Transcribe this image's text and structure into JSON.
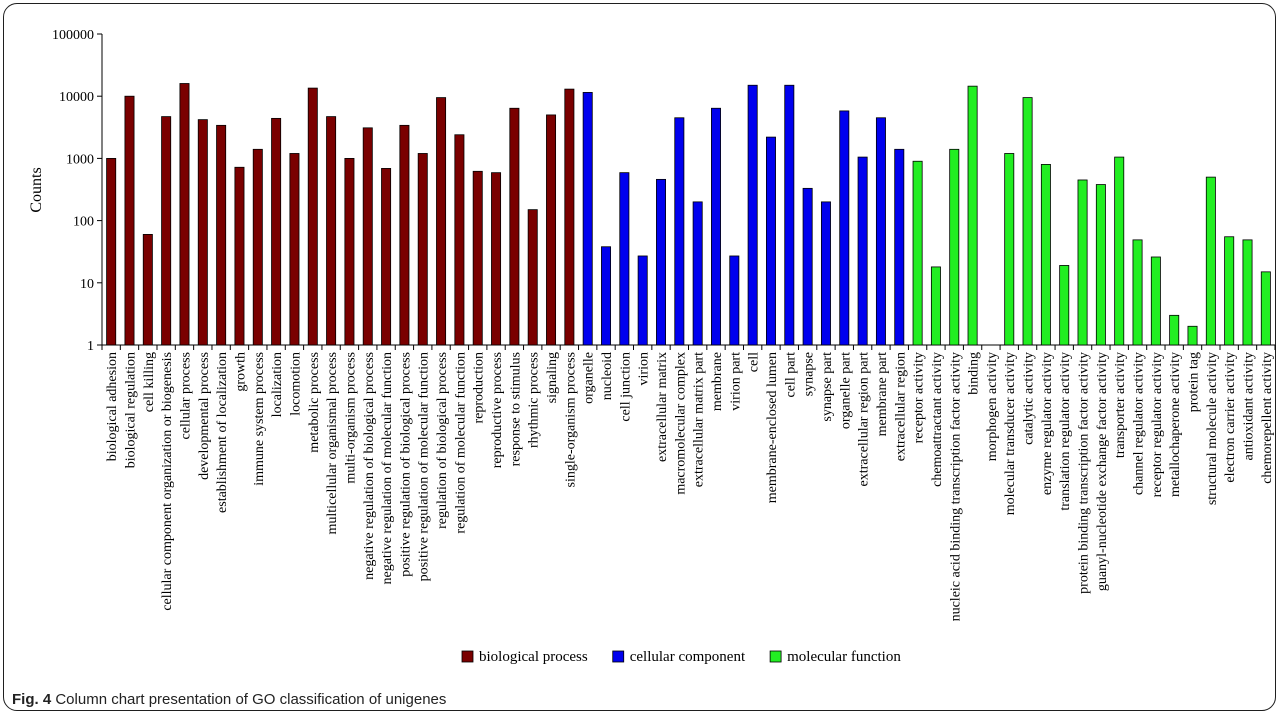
{
  "caption": {
    "label": "Fig. 4",
    "text": "Column chart presentation of GO classification of unigenes"
  },
  "chart_data": {
    "type": "bar",
    "title": "",
    "xlabel": "",
    "ylabel": "Counts",
    "yscale": "log",
    "ylim": [
      1,
      100000
    ],
    "yticks": [
      "1",
      "10",
      "100",
      "1000",
      "10000",
      "100000"
    ],
    "grid": false,
    "legend_position": "bottom",
    "colors": {
      "biological process": "#7a0000",
      "cellular component": "#0000ee",
      "molecular function": "#22ee22"
    },
    "series": [
      {
        "name": "biological process",
        "categories": [
          "biological adhesion",
          "biological regulation",
          "cell killing",
          "cellular component organization or biogenesis",
          "cellular process",
          "developmental process",
          "establishment of localization",
          "growth",
          "immune system process",
          "localization",
          "locomotion",
          "metabolic process",
          "multicellular organismal process",
          "multi-organism process",
          "negative regulation of biological process",
          "negative regulation of molecular function",
          "positive regulation of biological process",
          "positive regulation of molecular function",
          "regulation of biological process",
          "regulation of molecular function",
          "reproduction",
          "reproductive process",
          "response to stimulus",
          "rhythmic process",
          "signaling",
          "single-organism process"
        ],
        "values": [
          1000,
          10000,
          60,
          4700,
          16000,
          4200,
          3400,
          720,
          1400,
          4400,
          1200,
          13500,
          4700,
          1000,
          3100,
          690,
          3400,
          1200,
          9500,
          2400,
          620,
          590,
          6400,
          150,
          5000,
          13000
        ]
      },
      {
        "name": "cellular component",
        "categories": [
          "organelle",
          "nucleoid",
          "cell junction",
          "virion",
          "extracellular matrix",
          "macromolecular complex",
          "extracellular matrix part",
          "membrane",
          "virion part",
          "cell",
          "membrane-enclosed lumen",
          "cell part",
          "synapse",
          "synapse part",
          "organelle part",
          "extracellular region part",
          "membrane part",
          "extracellular region"
        ],
        "values": [
          11500,
          38,
          590,
          27,
          460,
          4500,
          200,
          6400,
          27,
          15000,
          2200,
          15000,
          330,
          200,
          5800,
          1050,
          4500,
          1400
        ]
      },
      {
        "name": "molecular function",
        "categories": [
          "receptor activity",
          "chemoattractant activity",
          "nucleic acid binding transcription factor activity",
          "binding",
          "morphogen activity",
          "molecular transducer activity",
          "catalytic activity",
          "enzyme regulator activity",
          "translation regulator activity",
          "protein binding transcription factor activity",
          "guanyl-nucleotide exchange factor activity",
          "transporter activity",
          "channel regulator activity",
          "receptor regulator activity",
          "metallochaperone activity",
          "protein tag",
          "structural molecule activity",
          "electron carrier activity",
          "antioxidant activity",
          "chemorepellent activity"
        ],
        "values": [
          900,
          18,
          1400,
          14500,
          1,
          1200,
          9500,
          800,
          19,
          450,
          380,
          1050,
          49,
          26,
          3,
          2,
          500,
          55,
          49,
          15
        ]
      }
    ]
  }
}
